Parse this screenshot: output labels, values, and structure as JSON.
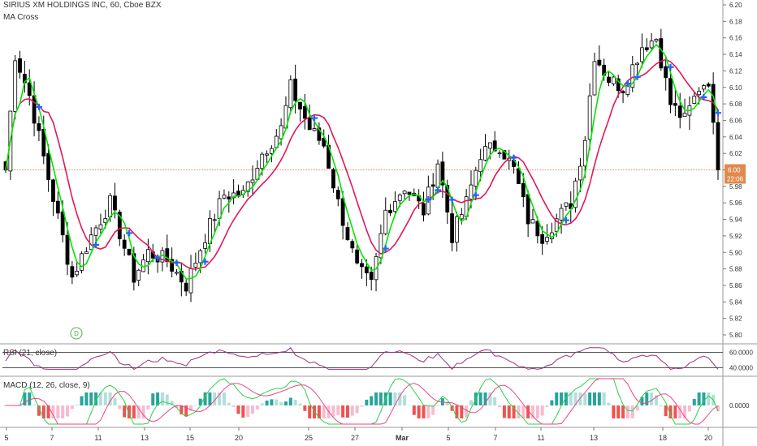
{
  "header": {
    "symbol_line": "SIRIUS XM HOLDINGS INC, 60, Cboe BZX",
    "indicator": "MA Cross"
  },
  "panes": {
    "rsi_label": "RSI (21, close)",
    "macd_label": "MACD (12, 26, close, 9)"
  },
  "price_tag": {
    "price": "6.00",
    "countdown": "22:06"
  },
  "event_marker": "D",
  "colors": {
    "up_candle": "#ffffff",
    "down_candle": "#000000",
    "ma_fast": "#00e600",
    "ma_slow": "#e0185a",
    "cross_marker": "#2962ff",
    "price_line": "#e08a4e",
    "rsi_line": "#9b2f7e",
    "macd_line": "#2bd04a",
    "signal_line": "#e8478a",
    "hist_pos": "#26a69a",
    "hist_neg": "#ef5350"
  },
  "chart_data": [
    {
      "type": "candlestick",
      "title": "SIRIUS XM HOLDINGS INC, 60, Cboe BZX",
      "x_ticks": [
        "5",
        "7",
        "11",
        "13",
        "15",
        "20",
        "25",
        "27",
        "Mar",
        "5",
        "7",
        "11",
        "13",
        "18",
        "20"
      ],
      "ylim": [
        5.8,
        6.2
      ],
      "y_ticks": [
        "6.20",
        "6.18",
        "6.16",
        "6.14",
        "6.12",
        "6.10",
        "6.08",
        "6.06",
        "6.04",
        "6.02",
        "6.00",
        "5.98",
        "5.96",
        "5.94",
        "5.92",
        "5.90",
        "5.88",
        "5.86",
        "5.84",
        "5.82",
        "5.80"
      ],
      "last_price": 6.0,
      "close_path": [
        [
          0,
          6.0
        ],
        [
          2,
          6.14
        ],
        [
          5,
          6.09
        ],
        [
          9,
          5.99
        ],
        [
          14,
          5.87
        ],
        [
          18,
          5.92
        ],
        [
          22,
          5.96
        ],
        [
          27,
          5.87
        ],
        [
          30,
          5.9
        ],
        [
          34,
          5.89
        ],
        [
          38,
          5.86
        ],
        [
          42,
          5.92
        ],
        [
          46,
          5.97
        ],
        [
          50,
          5.97
        ],
        [
          54,
          6.02
        ],
        [
          58,
          6.05
        ],
        [
          60,
          6.1
        ],
        [
          64,
          6.05
        ],
        [
          67,
          6.03
        ],
        [
          70,
          5.96
        ],
        [
          74,
          5.88
        ],
        [
          77,
          5.86
        ],
        [
          80,
          5.95
        ],
        [
          84,
          5.98
        ],
        [
          88,
          5.95
        ],
        [
          91,
          6.01
        ],
        [
          94,
          5.92
        ],
        [
          97,
          5.96
        ],
        [
          100,
          6.02
        ],
        [
          104,
          6.03
        ],
        [
          107,
          6.0
        ],
        [
          110,
          5.94
        ],
        [
          113,
          5.92
        ],
        [
          116,
          5.94
        ],
        [
          119,
          5.96
        ],
        [
          122,
          6.04
        ],
        [
          124,
          6.14
        ],
        [
          127,
          6.11
        ],
        [
          130,
          6.1
        ],
        [
          134,
          6.15
        ],
        [
          137,
          6.16
        ],
        [
          140,
          6.08
        ],
        [
          143,
          6.06
        ],
        [
          146,
          6.1
        ],
        [
          148,
          6.11
        ],
        [
          150,
          5.99
        ]
      ],
      "series": [
        {
          "name": "MA fast",
          "note": "green moving average"
        },
        {
          "name": "MA slow",
          "note": "red moving average"
        }
      ]
    },
    {
      "type": "line",
      "title": "RSI (21, close)",
      "y_ticks": [
        "60.0000",
        "40.0000"
      ],
      "levels": [
        60,
        40
      ]
    },
    {
      "type": "bar",
      "title": "MACD (12, 26, close, 9)",
      "y_ticks": [
        "0.0000"
      ]
    }
  ]
}
